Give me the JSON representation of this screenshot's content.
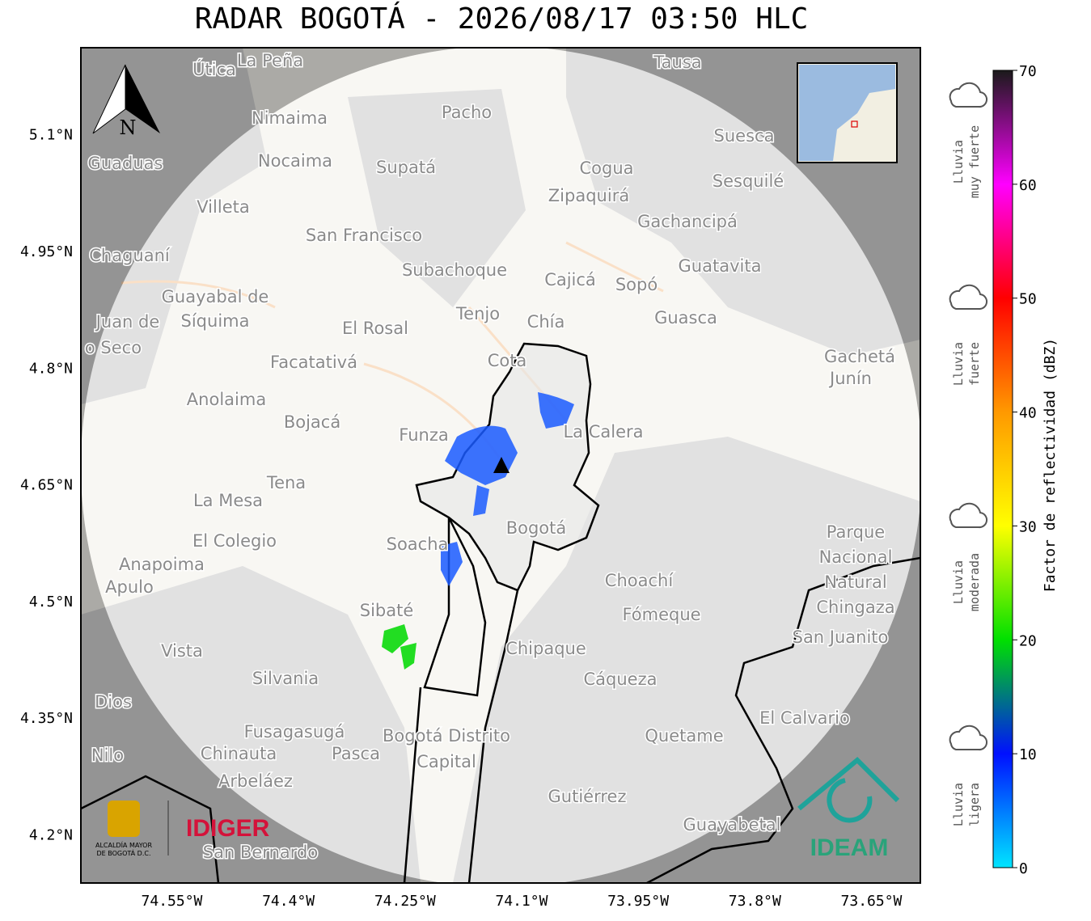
{
  "title": "RADAR BOGOTÁ - 2026/08/17 03:50 HLC",
  "map": {
    "xlim": [
      -74.667,
      -73.587
    ],
    "ylim": [
      4.138,
      5.212
    ],
    "lat_ticks": [
      {
        "value": 5.1,
        "label": "5.1°N"
      },
      {
        "value": 4.95,
        "label": "4.95°N"
      },
      {
        "value": 4.8,
        "label": "4.8°N"
      },
      {
        "value": 4.65,
        "label": "4.65°N"
      },
      {
        "value": 4.5,
        "label": "4.5°N"
      },
      {
        "value": 4.35,
        "label": "4.35°N"
      },
      {
        "value": 4.2,
        "label": "4.2°N"
      }
    ],
    "lon_ticks": [
      {
        "value": -74.55,
        "label": "74.55°W"
      },
      {
        "value": -74.4,
        "label": "74.4°W"
      },
      {
        "value": -74.25,
        "label": "74.25°W"
      },
      {
        "value": -74.1,
        "label": "74.1°W"
      },
      {
        "value": -73.95,
        "label": "73.95°W"
      },
      {
        "value": -73.8,
        "label": "73.8°W"
      },
      {
        "value": -73.65,
        "label": "73.65°W"
      }
    ],
    "places": [
      "La Peña",
      "Útica",
      "Tausa",
      "Pacho",
      "Nimaima",
      "Nocaima",
      "Supatá",
      "Guaduas",
      "Suesca",
      "Cogua",
      "Sesquilé",
      "Zipaquirá",
      "Villeta",
      "Gachancipá",
      "San Francisco",
      "Chaguaní",
      "Guatavita",
      "Subachoque",
      "Cajicá",
      "Sopó",
      "Guayabal de",
      "Síquima",
      "Tenjo",
      "Chía",
      "Guasca",
      "El Rosal",
      "Facatativá",
      "Cota",
      "Gachetá",
      "Junín",
      "Anolaima",
      "Bojacá",
      "Funza",
      "La Calera",
      "Tena",
      "La Mesa",
      "Bogotá",
      "Soacha",
      "El Colegio",
      "Parque",
      "Nacional",
      "Natural",
      "Chingaza",
      "Anapoima",
      "Apulo",
      "Choachí",
      "Sibaté",
      "Fómeque",
      "San Juanito",
      "Chipaque",
      "Silvania",
      "Cáqueza",
      "Dios",
      "El Calvario",
      "Fusagasugá",
      "Bogotá Distrito",
      "Capital",
      "Quetame",
      "Pasca",
      "Nilo",
      "Chinauta",
      "Arbeláez",
      "Gutiérrez",
      "Guayabetal",
      "San Bernardo",
      "Juan de",
      "o Seco",
      "Vista"
    ],
    "north": "N"
  },
  "logos": {
    "left": "ALCALDÍA MAYOR",
    "left2": "DE BOGOTÁ D.C.",
    "idiger": "IDIGER",
    "ideam": "IDEAM"
  },
  "colorbar": {
    "label": "Factor de reflectividad (dBZ)",
    "lim": [
      0,
      70
    ],
    "ticks": [
      0,
      10,
      20,
      30,
      40,
      50,
      60,
      70
    ],
    "colors": [
      "#00e5ff",
      "#0010ff",
      "#00e000",
      "#ffff00",
      "#ff9900",
      "#ff0000",
      "#ff00ff",
      "#1a1a1a"
    ],
    "categories": [
      [
        "Lluvia",
        "muy fuerte"
      ],
      [
        "Lluvia",
        "fuerte"
      ],
      [
        "Lluvia",
        "moderada"
      ],
      [
        "Lluvia",
        "ligera"
      ]
    ]
  }
}
